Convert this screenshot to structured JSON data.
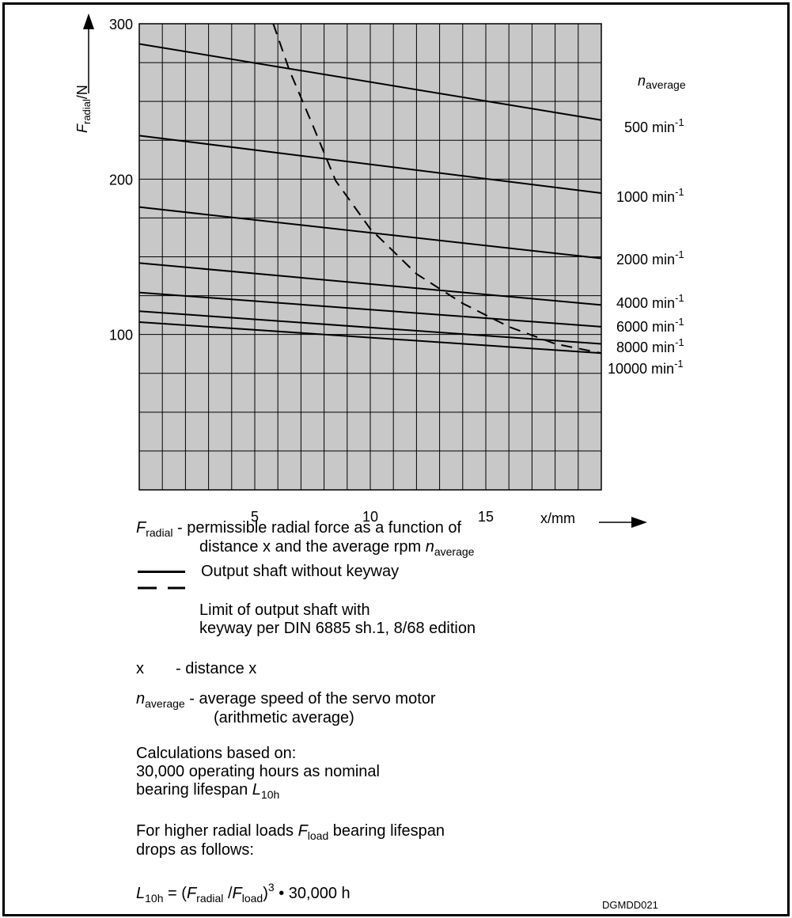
{
  "chart_data": {
    "type": "line",
    "ylabel": "F",
    "ylabel_sub": "radial",
    "ylabel_unit": "/N",
    "xlabel": "x/mm",
    "xlim": [
      0,
      20
    ],
    "ylim": [
      0,
      300
    ],
    "x_ticks": [
      "5",
      "10",
      "15"
    ],
    "y_ticks": [
      "100",
      "200",
      "300"
    ],
    "legend_title": "n",
    "legend_title_sub": "average",
    "grid": true,
    "series": [
      {
        "name": "500 min-1",
        "label": "500 min",
        "sup": "-1",
        "style": "solid",
        "x": [
          0,
          20
        ],
        "y": [
          287,
          238
        ]
      },
      {
        "name": "1000 min-1",
        "label": "1000 min",
        "sup": "-1",
        "style": "solid",
        "x": [
          0,
          20
        ],
        "y": [
          228,
          191
        ]
      },
      {
        "name": "2000 min-1",
        "label": "2000 min",
        "sup": "-1",
        "style": "solid",
        "x": [
          0,
          20
        ],
        "y": [
          182,
          149
        ]
      },
      {
        "name": "4000 min-1",
        "label": "4000 min",
        "sup": "-1",
        "style": "solid",
        "x": [
          0,
          20
        ],
        "y": [
          146,
          119
        ]
      },
      {
        "name": "6000 min-1",
        "label": "6000 min",
        "sup": "-1",
        "style": "solid",
        "x": [
          0,
          20
        ],
        "y": [
          127,
          105
        ]
      },
      {
        "name": "8000 min-1",
        "label": "8000 min",
        "sup": "-1",
        "style": "solid",
        "x": [
          0,
          20
        ],
        "y": [
          115,
          94
        ]
      },
      {
        "name": "10000 min-1",
        "label": "10000 min",
        "sup": "-1",
        "style": "solid",
        "x": [
          0,
          20
        ],
        "y": [
          108,
          88
        ]
      },
      {
        "style": "dashed",
        "x": [
          5.8,
          6.5,
          7.5,
          8.5,
          10,
          12,
          14,
          16,
          18,
          20
        ],
        "y": [
          300,
          270,
          235,
          199,
          168,
          139,
          120,
          105,
          94,
          88
        ]
      }
    ]
  },
  "legend": {
    "f_symbol": "F",
    "f_sub": "radial",
    "f_text_1": " - permissible radial force as a function of",
    "f_text_2": "distance x and the average rpm ",
    "n_symbol": "n",
    "n_sub": "average",
    "solid_label": "Output shaft without keyway",
    "dashed_label_1": "Limit of output shaft with",
    "dashed_label_2": "keyway per DIN 6885 sh.1, 8/68 edition",
    "x_symbol": "x",
    "x_text": "- distance x",
    "n_text_1": " - average speed of the servo motor",
    "n_text_2": "(arithmetic average)",
    "calc_1": "Calculations based on:",
    "calc_2": "30,000 operating hours as nominal",
    "calc_3": "bearing lifespan ",
    "L": "L",
    "L_sub": "10h",
    "higher_1": "For higher radial loads ",
    "higher_F": "F",
    "higher_F_sub": "load",
    "higher_1b": " bearing lifespan",
    "higher_2": "drops as follows:",
    "formula_eq": " = (",
    "formula_F1": "F",
    "formula_F1_sub": "radial",
    "formula_slash": " /",
    "formula_F2": "F",
    "formula_F2_sub": "load",
    "formula_close": ")",
    "formula_exp": "3",
    "formula_rest": " • 30,000 h"
  },
  "figure_code": "DGMDD021"
}
